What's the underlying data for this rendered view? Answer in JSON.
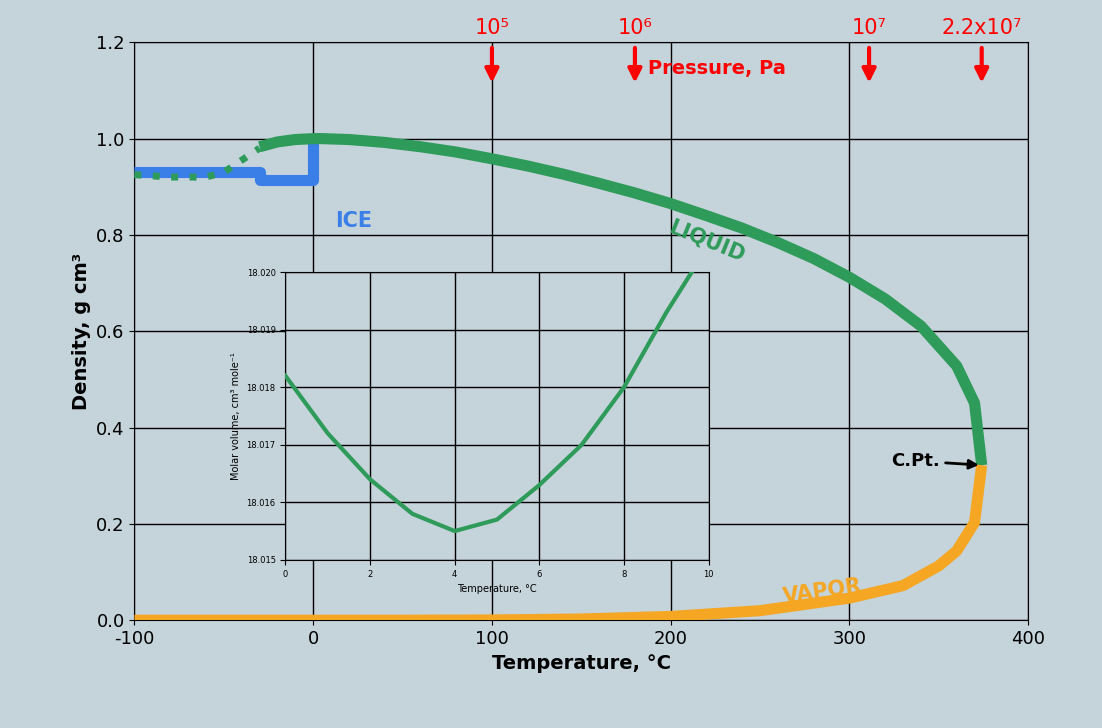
{
  "chart_data": [
    {
      "type": "line",
      "x_label": "Temperature, °C",
      "y_label": "Density, g cm³",
      "xlim": [
        -100,
        400
      ],
      "xticks": [
        -100,
        0,
        100,
        200,
        300,
        400
      ],
      "ylim": [
        0,
        1.2
      ],
      "yticks": [
        {
          "value": 0,
          "label": "0.0"
        },
        0.2,
        0.4,
        0.6,
        0.8,
        {
          "value": 1,
          "label": "1.0"
        },
        1.2
      ],
      "grid": true,
      "series": [
        {
          "name": "ICE",
          "color": "#3a7ee8",
          "line_style": "solid",
          "x": [
            -100,
            -30,
            -30,
            0,
            0
          ],
          "values": [
            0.93,
            0.93,
            0.915,
            0.915,
            1.0
          ]
        },
        {
          "color": "#2e9b5a",
          "line_style": "dotted",
          "x": [
            -100,
            -80,
            -60,
            -50,
            -40,
            -30
          ],
          "values": [
            0.925,
            0.92,
            0.92,
            0.93,
            0.955,
            0.98
          ]
        },
        {
          "name": "LIQUID",
          "color": "#2e9b5a",
          "line_style": "solid",
          "x": [
            -30,
            -20,
            -10,
            0,
            4,
            20,
            40,
            60,
            80,
            100,
            120,
            140,
            160,
            180,
            200,
            220,
            240,
            260,
            280,
            300,
            320,
            340,
            360,
            370,
            374
          ],
          "values": [
            0.983,
            0.993,
            0.998,
            0.9998,
            1.0,
            0.998,
            0.992,
            0.983,
            0.972,
            0.958,
            0.943,
            0.926,
            0.907,
            0.887,
            0.865,
            0.84,
            0.814,
            0.784,
            0.751,
            0.712,
            0.667,
            0.611,
            0.528,
            0.451,
            0.322
          ]
        },
        {
          "name": "VAPOR",
          "color": "#f5a623",
          "line_style": "solid",
          "x": [
            -100,
            0,
            50,
            100,
            150,
            200,
            250,
            300,
            330,
            350,
            360,
            370,
            374
          ],
          "values": [
            0.0,
            5e-06,
            8e-05,
            0.0006,
            0.0026,
            0.0079,
            0.0199,
            0.046,
            0.072,
            0.113,
            0.144,
            0.203,
            0.322
          ]
        }
      ],
      "critical_point": {
        "text": "C.Pt.",
        "x": 374,
        "y": 0.322
      },
      "pressure_label": "Pressure, Pa",
      "pressure_markers": [
        {
          "text": "10⁵",
          "x": 100
        },
        {
          "text": "10⁶",
          "x": 180
        },
        {
          "text": "10⁷",
          "x": 311
        },
        {
          "text": "2.2x10⁷",
          "x": 374
        }
      ]
    },
    {
      "type": "line",
      "x_label": "Temperature, °C",
      "y_label": "Molar volume, cm³ mole⁻¹",
      "xlim": [
        0,
        10
      ],
      "xticks": [
        0,
        2,
        4,
        6,
        8,
        10
      ],
      "ylim": [
        18.015,
        18.02
      ],
      "yticks": [
        18.015,
        18.016,
        18.017,
        18.018,
        18.019,
        {
          "value": 18.02,
          "label": "18.020"
        }
      ],
      "grid": true,
      "series": [
        {
          "color": "#2e9b5a",
          "line_style": "solid",
          "x": [
            0,
            1,
            2,
            3,
            4,
            5,
            6,
            7,
            8,
            9,
            9.6
          ],
          "values": [
            18.0182,
            18.0172,
            18.0164,
            18.0158,
            18.0155,
            18.0157,
            18.0163,
            18.017,
            18.018,
            18.0193,
            18.02
          ]
        }
      ]
    }
  ]
}
